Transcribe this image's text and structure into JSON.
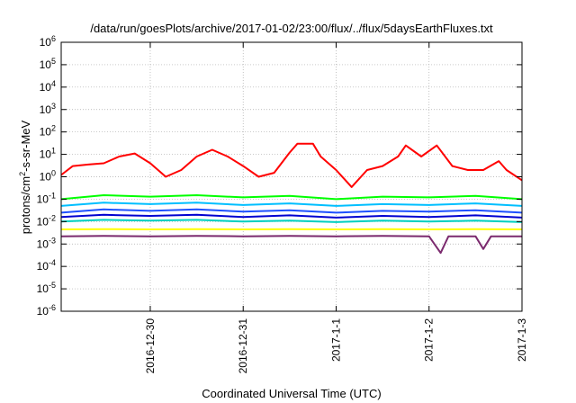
{
  "chart_data": {
    "type": "line",
    "title": "/data/run/goesPlots/archive/2017-01-02/23:00/flux/../flux/5daysEarthFluxes.txt",
    "xlabel": "Coordinated Universal Time (UTC)",
    "ylabel": "protons/cm²-s-sr-MeV",
    "ylabel_parts": [
      "protons/cm",
      "2",
      "-s-sr-MeV"
    ],
    "yscale": "log",
    "ylim": [
      1e-06,
      1000000.0
    ],
    "yticks": [
      {
        "value": 1e-06,
        "base": "10",
        "exp": "-6"
      },
      {
        "value": 1e-05,
        "base": "10",
        "exp": "-5"
      },
      {
        "value": 0.0001,
        "base": "10",
        "exp": "-4"
      },
      {
        "value": 0.001,
        "base": "10",
        "exp": "-3"
      },
      {
        "value": 0.01,
        "base": "10",
        "exp": "-2"
      },
      {
        "value": 0.1,
        "base": "10",
        "exp": "-1"
      },
      {
        "value": 1,
        "base": "10",
        "exp": "0"
      },
      {
        "value": 10,
        "base": "10",
        "exp": "1"
      },
      {
        "value": 100,
        "base": "10",
        "exp": "2"
      },
      {
        "value": 1000,
        "base": "10",
        "exp": "3"
      },
      {
        "value": 10000,
        "base": "10",
        "exp": "4"
      },
      {
        "value": 100000,
        "base": "10",
        "exp": "5"
      },
      {
        "value": 1000000,
        "base": "10",
        "exp": "6"
      }
    ],
    "xlim": [
      "2016-12-29T01:00",
      "2017-01-03T00:00"
    ],
    "xticks": [
      {
        "value": "2016-12-30T00:00",
        "label": "2016-12-30"
      },
      {
        "value": "2016-12-31T00:00",
        "label": "2016-12-31"
      },
      {
        "value": "2017-01-01T00:00",
        "label": "2017-1-1"
      },
      {
        "value": "2017-01-02T00:00",
        "label": "2017-1-2"
      },
      {
        "value": "2017-01-03T00:00",
        "label": "2017-1-3"
      }
    ],
    "grid": true,
    "series": [
      {
        "color": "#ff0000",
        "x": [
          "2016-12-29T01:00",
          "2016-12-29T04:00",
          "2016-12-29T08:00",
          "2016-12-29T12:00",
          "2016-12-29T16:00",
          "2016-12-29T20:00",
          "2016-12-30T00:00",
          "2016-12-30T04:00",
          "2016-12-30T08:00",
          "2016-12-30T12:00",
          "2016-12-30T16:00",
          "2016-12-30T20:00",
          "2016-12-31T00:00",
          "2016-12-31T04:00",
          "2016-12-31T08:00",
          "2016-12-31T12:00",
          "2016-12-31T14:00",
          "2016-12-31T18:00",
          "2016-12-31T20:00",
          "2017-01-01T00:00",
          "2017-01-01T04:00",
          "2017-01-01T08:00",
          "2017-01-01T12:00",
          "2017-01-01T16:00",
          "2017-01-01T18:00",
          "2017-01-01T22:00",
          "2017-01-02T02:00",
          "2017-01-02T06:00",
          "2017-01-02T10:00",
          "2017-01-02T14:00",
          "2017-01-02T18:00",
          "2017-01-02T20:00",
          "2017-01-03T00:00"
        ],
        "y": [
          1.2,
          3,
          3.5,
          4,
          8,
          11,
          4,
          1,
          2,
          8,
          16,
          8,
          3,
          1,
          1.5,
          12,
          30,
          30,
          8,
          2,
          0.35,
          2,
          3,
          8,
          25,
          8,
          25,
          3,
          2,
          2,
          5,
          2,
          0.7
        ]
      },
      {
        "color": "#00ff00",
        "x": [
          "2016-12-29T01:00",
          "2016-12-29T12:00",
          "2016-12-30T00:00",
          "2016-12-30T12:00",
          "2016-12-31T00:00",
          "2016-12-31T12:00",
          "2017-01-01T00:00",
          "2017-01-01T12:00",
          "2017-01-02T00:00",
          "2017-01-02T12:00",
          "2017-01-03T00:00"
        ],
        "y": [
          0.1,
          0.15,
          0.13,
          0.15,
          0.12,
          0.14,
          0.1,
          0.13,
          0.12,
          0.14,
          0.1
        ]
      },
      {
        "color": "#00bfff",
        "x": [
          "2016-12-29T01:00",
          "2016-12-29T12:00",
          "2016-12-30T00:00",
          "2016-12-30T12:00",
          "2016-12-31T00:00",
          "2016-12-31T12:00",
          "2017-01-01T00:00",
          "2017-01-01T12:00",
          "2017-01-02T00:00",
          "2017-01-02T12:00",
          "2017-01-03T00:00"
        ],
        "y": [
          0.05,
          0.07,
          0.06,
          0.07,
          0.055,
          0.065,
          0.05,
          0.06,
          0.055,
          0.065,
          0.05
        ]
      },
      {
        "color": "#1e50ff",
        "x": [
          "2016-12-29T01:00",
          "2016-12-29T12:00",
          "2016-12-30T00:00",
          "2016-12-30T12:00",
          "2016-12-31T00:00",
          "2016-12-31T12:00",
          "2017-01-01T00:00",
          "2017-01-01T12:00",
          "2017-01-02T00:00",
          "2017-01-02T12:00",
          "2017-01-03T00:00"
        ],
        "y": [
          0.025,
          0.035,
          0.03,
          0.035,
          0.028,
          0.032,
          0.025,
          0.03,
          0.028,
          0.032,
          0.025
        ]
      },
      {
        "color": "#0000d0",
        "x": [
          "2016-12-29T01:00",
          "2016-12-29T12:00",
          "2016-12-30T00:00",
          "2016-12-30T12:00",
          "2016-12-31T00:00",
          "2016-12-31T12:00",
          "2017-01-01T00:00",
          "2017-01-01T12:00",
          "2017-01-02T00:00",
          "2017-01-02T12:00",
          "2017-01-03T00:00"
        ],
        "y": [
          0.016,
          0.02,
          0.018,
          0.02,
          0.016,
          0.019,
          0.015,
          0.018,
          0.016,
          0.019,
          0.015
        ]
      },
      {
        "color": "#00d0c0",
        "x": [
          "2016-12-29T01:00",
          "2016-12-29T12:00",
          "2016-12-30T00:00",
          "2016-12-30T12:00",
          "2016-12-31T00:00",
          "2016-12-31T12:00",
          "2017-01-01T00:00",
          "2017-01-01T12:00",
          "2017-01-02T00:00",
          "2017-01-02T12:00",
          "2017-01-03T00:00"
        ],
        "y": [
          0.01,
          0.012,
          0.011,
          0.012,
          0.01,
          0.011,
          0.0095,
          0.011,
          0.01,
          0.011,
          0.0095
        ]
      },
      {
        "color": "#ffff00",
        "x": [
          "2016-12-29T01:00",
          "2016-12-29T12:00",
          "2016-12-30T00:00",
          "2016-12-30T12:00",
          "2016-12-31T00:00",
          "2016-12-31T12:00",
          "2017-01-01T00:00",
          "2017-01-01T12:00",
          "2017-01-02T00:00",
          "2017-01-02T12:00",
          "2017-01-03T00:00"
        ],
        "y": [
          0.0045,
          0.0046,
          0.0045,
          0.0046,
          0.0045,
          0.0046,
          0.0045,
          0.0046,
          0.0045,
          0.0046,
          0.0045
        ]
      },
      {
        "color": "#7b2a6e",
        "x": [
          "2016-12-29T01:00",
          "2016-12-29T12:00",
          "2016-12-30T00:00",
          "2016-12-30T12:00",
          "2016-12-31T00:00",
          "2016-12-31T12:00",
          "2017-01-01T00:00",
          "2017-01-01T12:00",
          "2017-01-02T00:00",
          "2017-01-02T03:00",
          "2017-01-02T05:00",
          "2017-01-02T12:00",
          "2017-01-02T14:00",
          "2017-01-02T16:00",
          "2017-01-03T00:00"
        ],
        "y": [
          0.0022,
          0.0023,
          0.0022,
          0.0023,
          0.0022,
          0.0023,
          0.0022,
          0.0023,
          0.0022,
          0.0004,
          0.0022,
          0.0022,
          0.0006,
          0.0022,
          0.0022
        ]
      }
    ]
  }
}
